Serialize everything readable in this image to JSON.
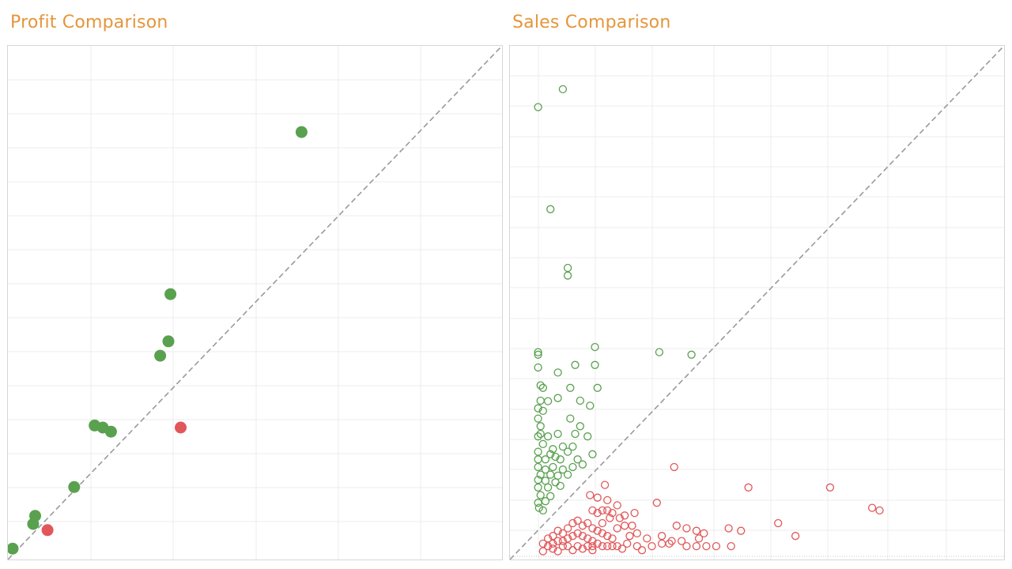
{
  "charts_meta": {
    "colors": {
      "title": "#e6953a",
      "green": "#59a14f",
      "red": "#e15759",
      "grid": "#ececec",
      "diagonal": "#9a9a9a"
    }
  },
  "chart_data": [
    {
      "type": "scatter",
      "title": "Profit Comparison",
      "marker": "filled-circle",
      "grid": true,
      "reference_line": "y = x (dashed)",
      "xlim": [
        0,
        12
      ],
      "ylim": [
        0,
        12.4
      ],
      "series": [
        {
          "color": "#59a14f",
          "points": [
            [
              0.0,
              0.15
            ],
            [
              0.5,
              0.75
            ],
            [
              0.55,
              0.95
            ],
            [
              1.5,
              1.65
            ],
            [
              2.0,
              3.15
            ],
            [
              2.2,
              3.1
            ],
            [
              2.4,
              3.0
            ],
            [
              3.6,
              4.85
            ],
            [
              3.8,
              5.2
            ],
            [
              3.85,
              6.35
            ],
            [
              7.05,
              10.3
            ]
          ]
        },
        {
          "color": "#e15759",
          "points": [
            [
              0.85,
              0.6
            ],
            [
              4.1,
              3.1
            ]
          ]
        }
      ]
    },
    {
      "type": "scatter",
      "title": "Sales Comparison",
      "marker": "hollow-circle",
      "grid": true,
      "reference_line": "y = x (dashed)",
      "xlim": [
        0,
        1
      ],
      "ylim": [
        0,
        1
      ],
      "series": [
        {
          "color": "#59a14f",
          "points": [
            [
              0.06,
              0.88
            ],
            [
              0.11,
              0.915
            ],
            [
              0.085,
              0.68
            ],
            [
              0.12,
              0.565
            ],
            [
              0.12,
              0.55
            ],
            [
              0.06,
              0.4
            ],
            [
              0.06,
              0.395
            ],
            [
              0.175,
              0.41
            ],
            [
              0.305,
              0.4
            ],
            [
              0.37,
              0.395
            ],
            [
              0.06,
              0.37
            ],
            [
              0.1,
              0.36
            ],
            [
              0.135,
              0.375
            ],
            [
              0.175,
              0.375
            ],
            [
              0.065,
              0.335
            ],
            [
              0.07,
              0.33
            ],
            [
              0.125,
              0.33
            ],
            [
              0.18,
              0.33
            ],
            [
              0.065,
              0.305
            ],
            [
              0.08,
              0.304
            ],
            [
              0.1,
              0.31
            ],
            [
              0.145,
              0.305
            ],
            [
              0.165,
              0.295
            ],
            [
              0.06,
              0.29
            ],
            [
              0.07,
              0.285
            ],
            [
              0.125,
              0.27
            ],
            [
              0.06,
              0.27
            ],
            [
              0.065,
              0.255
            ],
            [
              0.145,
              0.255
            ],
            [
              0.065,
              0.24
            ],
            [
              0.1,
              0.24
            ],
            [
              0.135,
              0.24
            ],
            [
              0.06,
              0.235
            ],
            [
              0.08,
              0.235
            ],
            [
              0.16,
              0.235
            ],
            [
              0.07,
              0.22
            ],
            [
              0.09,
              0.21
            ],
            [
              0.11,
              0.215
            ],
            [
              0.13,
              0.215
            ],
            [
              0.06,
              0.205
            ],
            [
              0.085,
              0.2
            ],
            [
              0.12,
              0.205
            ],
            [
              0.17,
              0.2
            ],
            [
              0.06,
              0.19
            ],
            [
              0.075,
              0.19
            ],
            [
              0.095,
              0.195
            ],
            [
              0.105,
              0.19
            ],
            [
              0.14,
              0.19
            ],
            [
              0.06,
              0.175
            ],
            [
              0.075,
              0.17
            ],
            [
              0.09,
              0.175
            ],
            [
              0.11,
              0.17
            ],
            [
              0.13,
              0.175
            ],
            [
              0.15,
              0.18
            ],
            [
              0.065,
              0.16
            ],
            [
              0.085,
              0.16
            ],
            [
              0.1,
              0.158
            ],
            [
              0.12,
              0.16
            ],
            [
              0.06,
              0.15
            ],
            [
              0.075,
              0.148
            ],
            [
              0.095,
              0.145
            ],
            [
              0.06,
              0.135
            ],
            [
              0.08,
              0.135
            ],
            [
              0.105,
              0.138
            ],
            [
              0.065,
              0.12
            ],
            [
              0.085,
              0.118
            ],
            [
              0.06,
              0.105
            ],
            [
              0.075,
              0.108
            ],
            [
              0.062,
              0.095
            ],
            [
              0.07,
              0.09
            ]
          ]
        },
        {
          "color": "#e15759",
          "points": [
            [
              0.335,
              0.175
            ],
            [
              0.65,
              0.135
            ],
            [
              0.485,
              0.135
            ],
            [
              0.3,
              0.105
            ],
            [
              0.195,
              0.14
            ],
            [
              0.165,
              0.12
            ],
            [
              0.18,
              0.115
            ],
            [
              0.2,
              0.11
            ],
            [
              0.22,
              0.1
            ],
            [
              0.235,
              0.08
            ],
            [
              0.255,
              0.085
            ],
            [
              0.34,
              0.06
            ],
            [
              0.36,
              0.055
            ],
            [
              0.47,
              0.05
            ],
            [
              0.545,
              0.065
            ],
            [
              0.58,
              0.04
            ],
            [
              0.31,
              0.04
            ],
            [
              0.33,
              0.03
            ],
            [
              0.385,
              0.035
            ],
            [
              0.445,
              0.055
            ],
            [
              0.75,
              0.09
            ],
            [
              0.735,
              0.095
            ],
            [
              0.38,
              0.05
            ],
            [
              0.395,
              0.045
            ],
            [
              0.28,
              0.035
            ],
            [
              0.26,
              0.045
            ],
            [
              0.245,
              0.04
            ],
            [
              0.21,
              0.035
            ],
            [
              0.22,
              0.055
            ],
            [
              0.235,
              0.06
            ],
            [
              0.25,
              0.06
            ],
            [
              0.225,
              0.075
            ],
            [
              0.205,
              0.075
            ],
            [
              0.19,
              0.065
            ],
            [
              0.17,
              0.09
            ],
            [
              0.18,
              0.085
            ],
            [
              0.19,
              0.09
            ],
            [
              0.2,
              0.09
            ],
            [
              0.21,
              0.085
            ],
            [
              0.17,
              0.055
            ],
            [
              0.18,
              0.05
            ],
            [
              0.19,
              0.045
            ],
            [
              0.2,
              0.04
            ],
            [
              0.16,
              0.065
            ],
            [
              0.15,
              0.06
            ],
            [
              0.14,
              0.07
            ],
            [
              0.13,
              0.065
            ],
            [
              0.12,
              0.055
            ],
            [
              0.11,
              0.045
            ],
            [
              0.1,
              0.05
            ],
            [
              0.09,
              0.04
            ],
            [
              0.08,
              0.035
            ],
            [
              0.07,
              0.025
            ],
            [
              0.08,
              0.02
            ],
            [
              0.09,
              0.025
            ],
            [
              0.1,
              0.03
            ],
            [
              0.11,
              0.03
            ],
            [
              0.12,
              0.035
            ],
            [
              0.13,
              0.04
            ],
            [
              0.14,
              0.045
            ],
            [
              0.15,
              0.04
            ],
            [
              0.16,
              0.035
            ],
            [
              0.17,
              0.03
            ],
            [
              0.18,
              0.025
            ],
            [
              0.19,
              0.02
            ],
            [
              0.2,
              0.02
            ],
            [
              0.21,
              0.02
            ],
            [
              0.22,
              0.02
            ],
            [
              0.24,
              0.025
            ],
            [
              0.26,
              0.02
            ],
            [
              0.29,
              0.02
            ],
            [
              0.31,
              0.025
            ],
            [
              0.325,
              0.025
            ],
            [
              0.35,
              0.03
            ],
            [
              0.36,
              0.02
            ],
            [
              0.38,
              0.02
            ],
            [
              0.4,
              0.02
            ],
            [
              0.42,
              0.02
            ],
            [
              0.45,
              0.02
            ],
            [
              0.07,
              0.01
            ],
            [
              0.1,
              0.01
            ],
            [
              0.13,
              0.012
            ],
            [
              0.15,
              0.015
            ],
            [
              0.17,
              0.012
            ],
            [
              0.23,
              0.015
            ],
            [
              0.27,
              0.012
            ],
            [
              0.09,
              0.015
            ],
            [
              0.11,
              0.02
            ],
            [
              0.12,
              0.02
            ],
            [
              0.14,
              0.02
            ],
            [
              0.16,
              0.02
            ],
            [
              0.17,
              0.02
            ]
          ]
        }
      ]
    }
  ]
}
